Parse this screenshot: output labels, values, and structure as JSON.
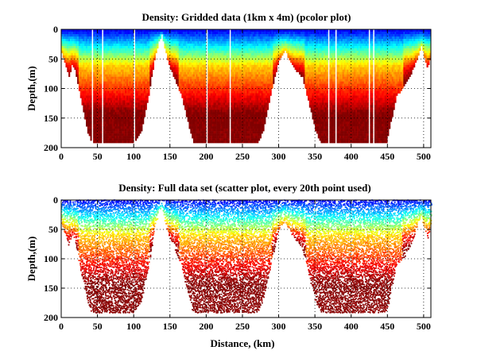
{
  "figure": {
    "xlabel": "Distance, (km)"
  },
  "chart_data": [
    {
      "type": "heatmap",
      "title": "Density: Gridded data (1km x 4m) (pcolor plot)",
      "xlabel": "",
      "ylabel": "Depth,(m)",
      "xlim": [
        0,
        510
      ],
      "ylim": [
        200,
        0
      ],
      "x_ticks": [
        0,
        50,
        100,
        150,
        200,
        250,
        300,
        350,
        400,
        450,
        500
      ],
      "y_ticks": [
        0,
        50,
        100,
        150,
        200
      ],
      "grid": true,
      "colormap": "jet",
      "color_meaning": "density: low (blue) near surface, high (dark red) at depth",
      "bottom_profile": {
        "distance_km": [
          0,
          5,
          10,
          14,
          18,
          25,
          35,
          42,
          60,
          100,
          110,
          120,
          128,
          134,
          138,
          142,
          148,
          155,
          165,
          175,
          182,
          200,
          270,
          278,
          290,
          300,
          308,
          312,
          318,
          325,
          332,
          340,
          350,
          358,
          362,
          440,
          448,
          455,
          462,
          470,
          480,
          490,
          496,
          500,
          505,
          510
        ],
        "max_depth_m": [
          40,
          60,
          78,
          60,
          65,
          110,
          170,
          192,
          192,
          192,
          170,
          110,
          50,
          20,
          8,
          30,
          60,
          80,
          110,
          160,
          192,
          192,
          192,
          170,
          100,
          50,
          35,
          45,
          60,
          70,
          80,
          120,
          170,
          192,
          192,
          192,
          192,
          150,
          110,
          100,
          80,
          50,
          25,
          45,
          65,
          40
        ]
      },
      "gaps_km": [
        42,
        56,
        87,
        93,
        100,
        200,
        232,
        247,
        368,
        378,
        424,
        430
      ]
    },
    {
      "type": "scatter",
      "title": "Density: Full data set (scatter plot, every 20th point used)",
      "xlabel": "Distance, (km)",
      "ylabel": "Depth,(m)",
      "xlim": [
        0,
        510
      ],
      "ylim": [
        200,
        0
      ],
      "x_ticks": [
        0,
        50,
        100,
        150,
        200,
        250,
        300,
        350,
        400,
        450,
        500
      ],
      "y_ticks": [
        0,
        50,
        100,
        150,
        200
      ],
      "grid": true,
      "colormap": "jet",
      "sampling": "every 20th point",
      "bottom_profile": {
        "distance_km": [
          0,
          5,
          10,
          14,
          18,
          25,
          35,
          42,
          60,
          100,
          110,
          120,
          128,
          134,
          138,
          142,
          148,
          155,
          165,
          175,
          182,
          200,
          270,
          278,
          290,
          300,
          308,
          312,
          318,
          325,
          332,
          340,
          350,
          358,
          362,
          440,
          448,
          455,
          462,
          470,
          480,
          490,
          496,
          500,
          505,
          510
        ],
        "max_depth_m": [
          40,
          60,
          78,
          60,
          65,
          110,
          170,
          192,
          192,
          192,
          170,
          110,
          50,
          20,
          8,
          30,
          60,
          80,
          110,
          160,
          192,
          192,
          192,
          170,
          100,
          50,
          35,
          45,
          60,
          70,
          80,
          120,
          170,
          192,
          192,
          192,
          192,
          150,
          110,
          100,
          80,
          50,
          25,
          45,
          65,
          40
        ]
      }
    }
  ]
}
